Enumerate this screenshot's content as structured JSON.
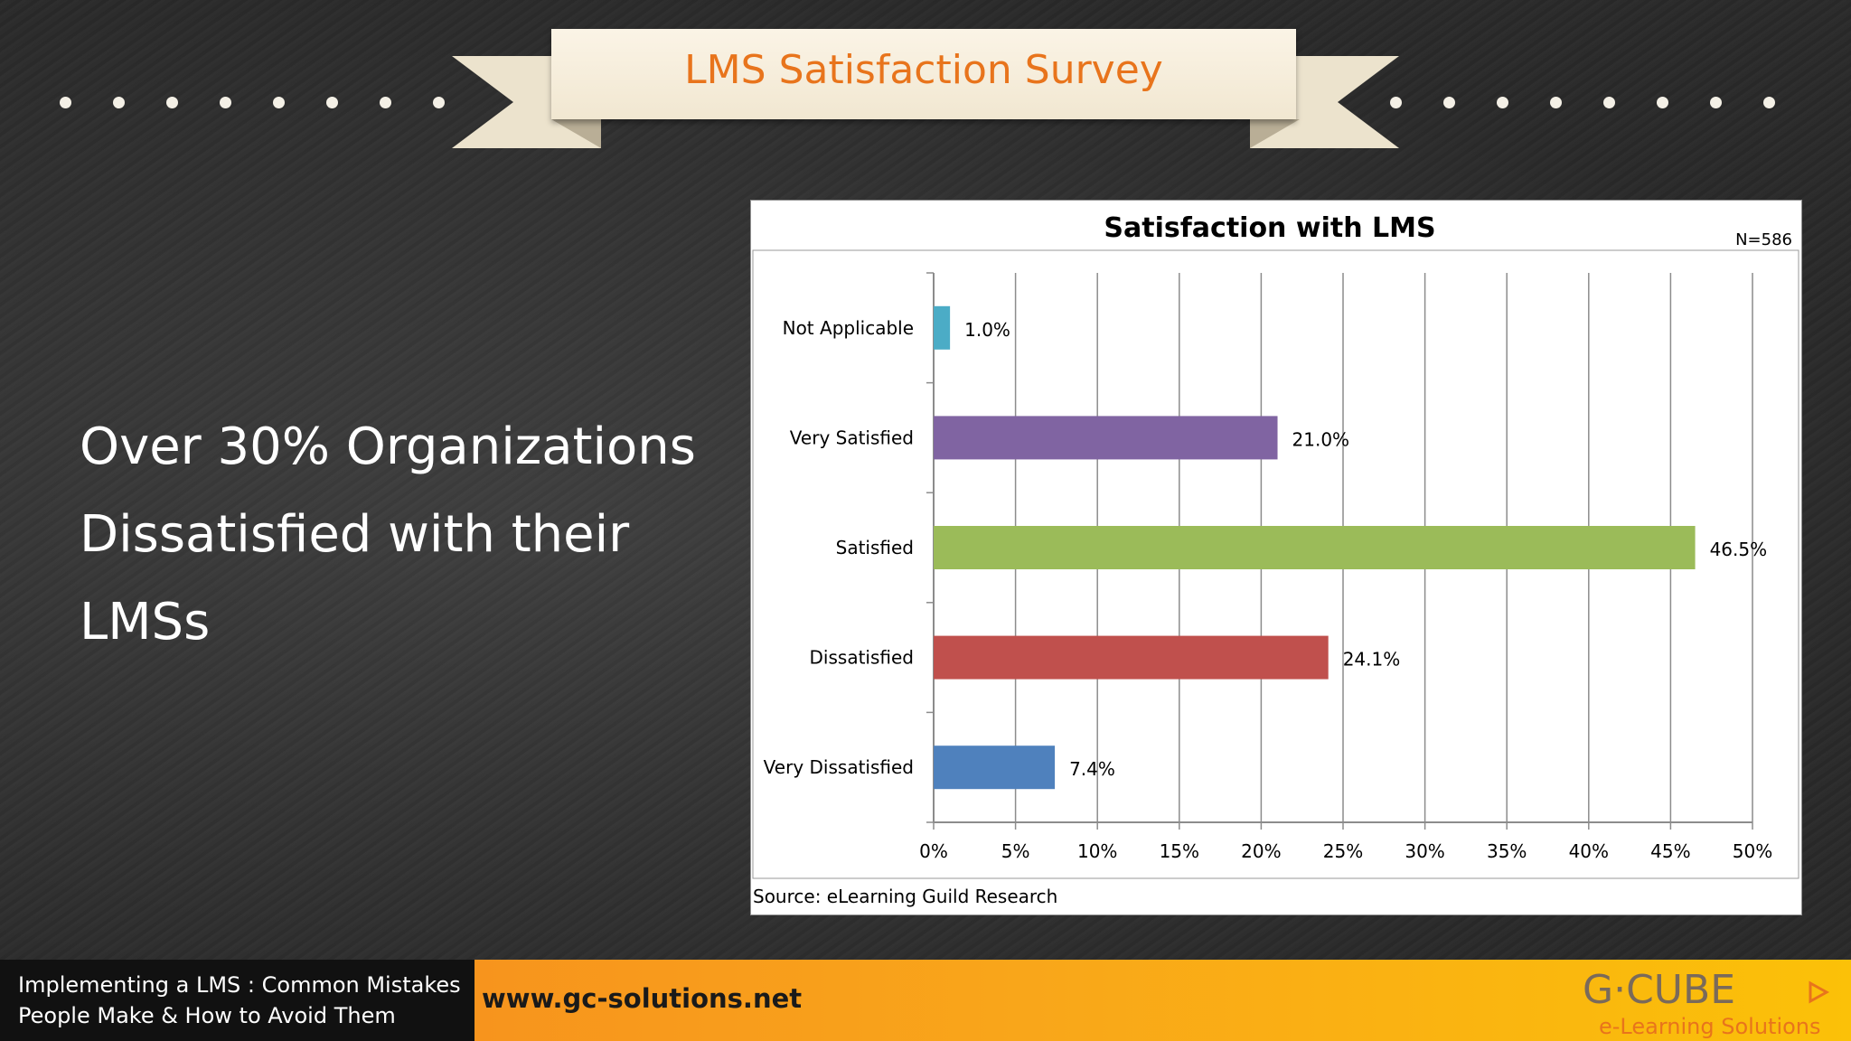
{
  "slide": {
    "banner_title": "LMS Satisfaction Survey",
    "headline_lines": [
      "Over 30% Organizations",
      "Dissatisfied with their",
      "LMSs"
    ]
  },
  "chart_data": {
    "type": "bar",
    "orientation": "horizontal",
    "title": "Satisfaction with LMS",
    "annotation": "N=586",
    "source": "Source: eLearning Guild Research",
    "categories": [
      "Not Applicable",
      "Very Satisfied",
      "Satisfied",
      "Dissatisfied",
      "Very Dissatisfied"
    ],
    "values": [
      1.0,
      21.0,
      46.5,
      24.1,
      7.4
    ],
    "value_labels": [
      "1.0%",
      "21.0%",
      "46.5%",
      "24.1%",
      "7.4%"
    ],
    "colors": [
      "#4bacc6",
      "#8064a2",
      "#9bbb59",
      "#c0504d",
      "#4f81bd"
    ],
    "xlim": [
      0,
      50
    ],
    "xticks": [
      0,
      5,
      10,
      15,
      20,
      25,
      30,
      35,
      40,
      45,
      50
    ],
    "xtick_labels": [
      "0%",
      "5%",
      "10%",
      "15%",
      "20%",
      "25%",
      "30%",
      "35%",
      "40%",
      "45%",
      "50%"
    ],
    "grid": true,
    "legend": "none"
  },
  "footer": {
    "left_line1": "Implementing a LMS : Common Mistakes",
    "left_line2": "People Make & How to Avoid Them",
    "url": "www.gc-solutions.net",
    "logo_main": "G·CUBE",
    "logo_tagline": "e-Learning Solutions"
  },
  "colors": {
    "banner_text": "#e8741c",
    "footer_gradient_start": "#f7941d",
    "footer_gradient_end": "#fbc108"
  }
}
